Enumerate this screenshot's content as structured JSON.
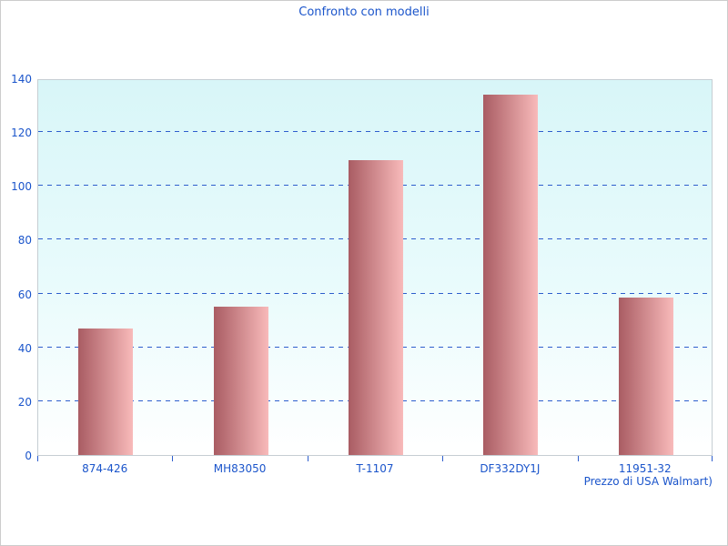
{
  "window": {
    "background": "#ffffff",
    "border_color": "#cccccc"
  },
  "chart_data": {
    "type": "bar",
    "title": "Confronto con modelli",
    "categories": [
      "874-426",
      "MH83050",
      "T-1107",
      "DF332DY1J",
      "11951-32"
    ],
    "values": [
      47,
      55,
      109.5,
      134,
      58.5
    ],
    "xlabel": "Prezzo di USA Walmart)",
    "ylabel": "",
    "ylim": [
      0,
      140
    ],
    "yticks": [
      0,
      20,
      40,
      60,
      80,
      100,
      120,
      140
    ],
    "grid": "horizontal-dashed",
    "legend_position": "none",
    "colors": {
      "title_text": "#1b55cb",
      "axis_text": "#1b55cb",
      "gridline": "#2e5ecd",
      "tick_mark": "#2e5ecd",
      "bar_gradient_left": "#a95c63",
      "bar_gradient_right": "#f8baba",
      "plot_background_top": "#d8f6f8",
      "plot_background_bottom": "#ffffff",
      "plot_border": "#c6ced3"
    }
  }
}
